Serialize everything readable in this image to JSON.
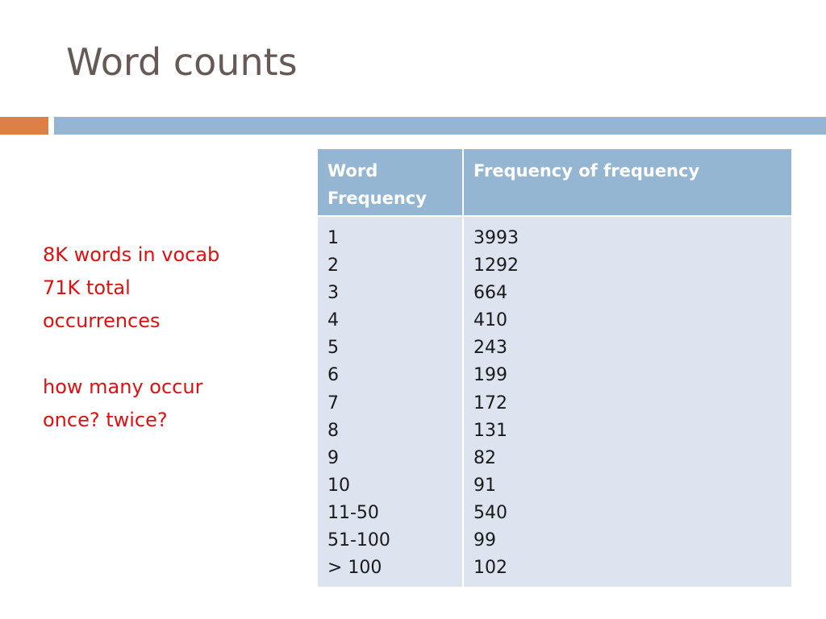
{
  "slide": {
    "title": "Word counts",
    "notes": {
      "line1": "8K words in vocab",
      "line2": "71K total",
      "line3": "occurrences",
      "line4": "how many occur",
      "line5": "once? twice?"
    },
    "colors": {
      "accent_orange": "#dd8046",
      "accent_blue": "#94b6d2",
      "note_red": "#e01010"
    }
  },
  "table": {
    "headers": {
      "col1_line1": "Word",
      "col1_line2": "Frequency",
      "col2": "Frequency of frequency"
    },
    "word_frequency": [
      "1",
      "2",
      "3",
      "4",
      "5",
      "6",
      "7",
      "8",
      "9",
      "10",
      "11-50",
      "51-100",
      "> 100"
    ],
    "freq_of_freq": [
      "3993",
      "1292",
      "664",
      "410",
      "243",
      "199",
      "172",
      "131",
      "82",
      "91",
      "540",
      "99",
      "102"
    ]
  }
}
